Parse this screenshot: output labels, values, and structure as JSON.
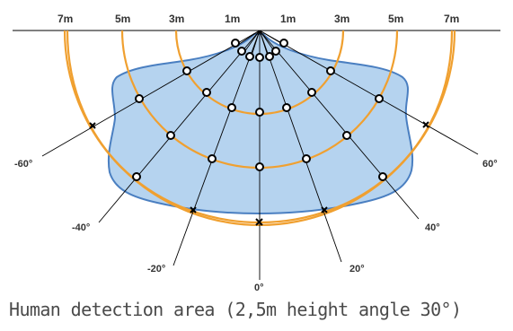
{
  "distance_labels_left": [
    "7m",
    "5m",
    "3m",
    "1m"
  ],
  "distance_labels_right": [
    "1m",
    "3m",
    "5m",
    "7m"
  ],
  "angle_labels": {
    "neg60": "-60°",
    "neg40": "-40°",
    "neg20": "-20°",
    "zero": "0°",
    "pos20": "20°",
    "pos40": "40°",
    "pos60": "60°"
  },
  "caption": "Human detection area (2,5m height angle 30°)",
  "colors": {
    "area_fill": "#b5d3ef",
    "area_stroke": "#4a7fc1",
    "arc": "#f0a030",
    "ray": "#000000",
    "point_fill": "#ffffff",
    "point_stroke": "#000000"
  }
}
